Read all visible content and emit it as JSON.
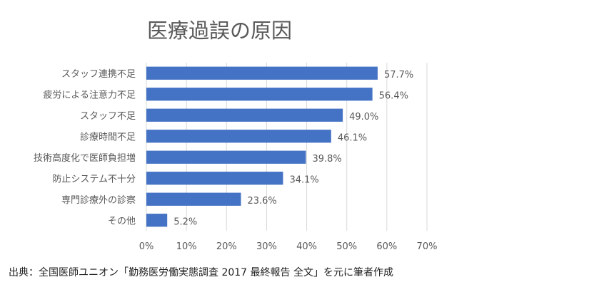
{
  "chart_data": {
    "type": "bar",
    "orientation": "horizontal",
    "title": "医療過誤の原因",
    "categories": [
      "スタッフ連携不足",
      "疲労による注意力不足",
      "スタッフ不足",
      "診療時間不足",
      "技術高度化で医師負担増",
      "防止システム不十分",
      "専門診療外の診察",
      "その他"
    ],
    "values": [
      57.7,
      56.4,
      49.0,
      46.1,
      39.8,
      34.1,
      23.6,
      5.2
    ],
    "data_labels": [
      "57.7%",
      "56.4%",
      "49.0%",
      "46.1%",
      "39.8%",
      "34.1%",
      "23.6%",
      "5.2%"
    ],
    "xlim": [
      0,
      70
    ],
    "xticks": [
      "0%",
      "10%",
      "20%",
      "30%",
      "40%",
      "50%",
      "60%",
      "70%"
    ],
    "grid": true,
    "legend": "none",
    "bar_color": "#4472C4"
  },
  "source_note": "出典：全国医師ユニオン「勤務医労働実態調査 2017 最終報告 全文」を元に筆者作成"
}
